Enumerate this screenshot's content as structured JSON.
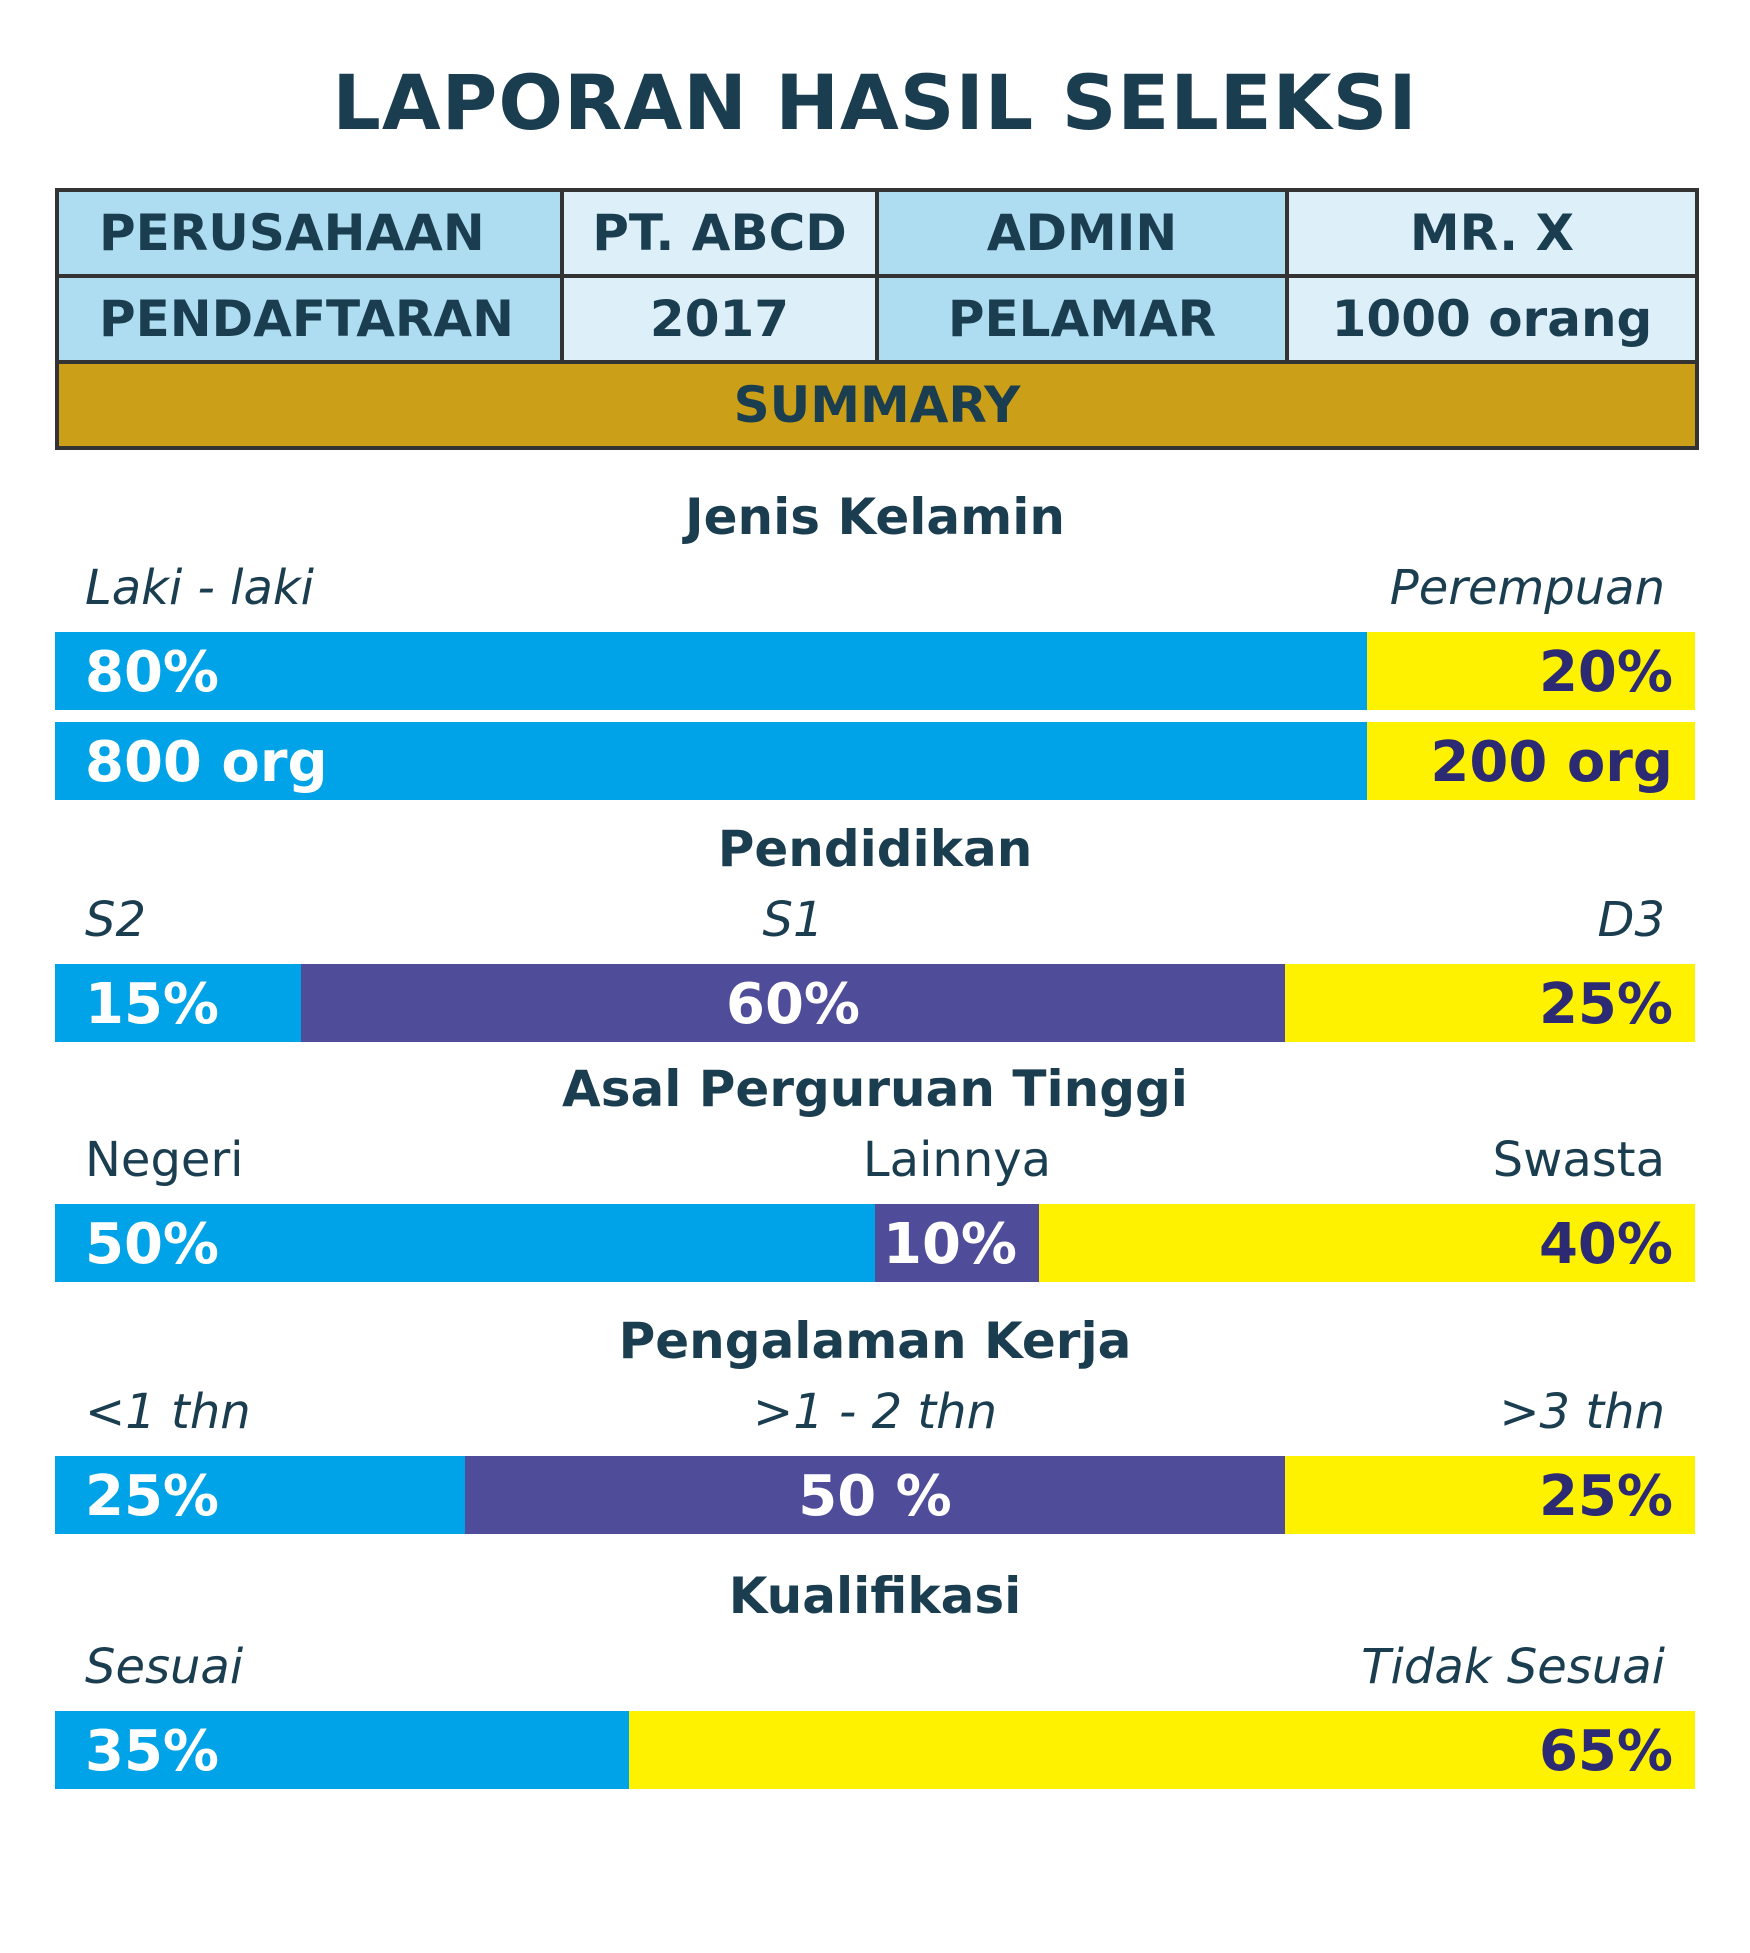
{
  "title": "LAPORAN HASIL SELEKSI",
  "info": {
    "row1": {
      "label1": "PERUSAHAAN",
      "value1": "PT. ABCD",
      "label2": "ADMIN",
      "value2": "MR. X"
    },
    "row2": {
      "label1": "PENDAFTARAN",
      "value1": "2017",
      "label2": "PELAMAR",
      "value2": "1000 orang"
    },
    "summary": "SUMMARY"
  },
  "colors": {
    "blue": "#00a3e8",
    "purple": "#4f4c9a",
    "yellow": "#fff200",
    "gold": "#cba018",
    "header_blue": "#aedcf0"
  },
  "chart_data": [
    {
      "type": "bar",
      "stacked": true,
      "orientation": "horizontal",
      "title": "Jenis Kelamin",
      "categories": [
        "Laki - laki",
        "Perempuan"
      ],
      "italic_labels": true,
      "rows": [
        {
          "values": [
            80,
            20
          ],
          "labels": [
            "80%",
            "20%"
          ]
        },
        {
          "values": [
            800,
            200
          ],
          "labels": [
            "800 org",
            "200 org"
          ]
        }
      ]
    },
    {
      "type": "bar",
      "stacked": true,
      "orientation": "horizontal",
      "title": "Pendidikan",
      "categories": [
        "S2",
        "S1",
        "D3"
      ],
      "italic_labels": true,
      "rows": [
        {
          "values": [
            15,
            60,
            25
          ],
          "labels": [
            "15%",
            "60%",
            "25%"
          ]
        }
      ]
    },
    {
      "type": "bar",
      "stacked": true,
      "orientation": "horizontal",
      "title": "Asal Perguruan Tinggi",
      "categories": [
        "Negeri",
        "Lainnya",
        "Swasta"
      ],
      "italic_labels": false,
      "rows": [
        {
          "values": [
            50,
            10,
            40
          ],
          "labels": [
            "50%",
            "10%",
            "40%"
          ]
        }
      ]
    },
    {
      "type": "bar",
      "stacked": true,
      "orientation": "horizontal",
      "title": "Pengalaman Kerja",
      "categories": [
        "<1 thn",
        ">1 - 2 thn",
        ">3 thn"
      ],
      "italic_labels": true,
      "rows": [
        {
          "values": [
            25,
            50,
            25
          ],
          "labels": [
            "25%",
            "50 %",
            "25%"
          ]
        }
      ]
    },
    {
      "type": "bar",
      "stacked": true,
      "orientation": "horizontal",
      "title": "Kualifikasi",
      "categories": [
        "Sesuai",
        "Tidak Sesuai"
      ],
      "italic_labels": true,
      "rows": [
        {
          "values": [
            35,
            65
          ],
          "labels": [
            "35%",
            "65%"
          ]
        }
      ]
    }
  ]
}
